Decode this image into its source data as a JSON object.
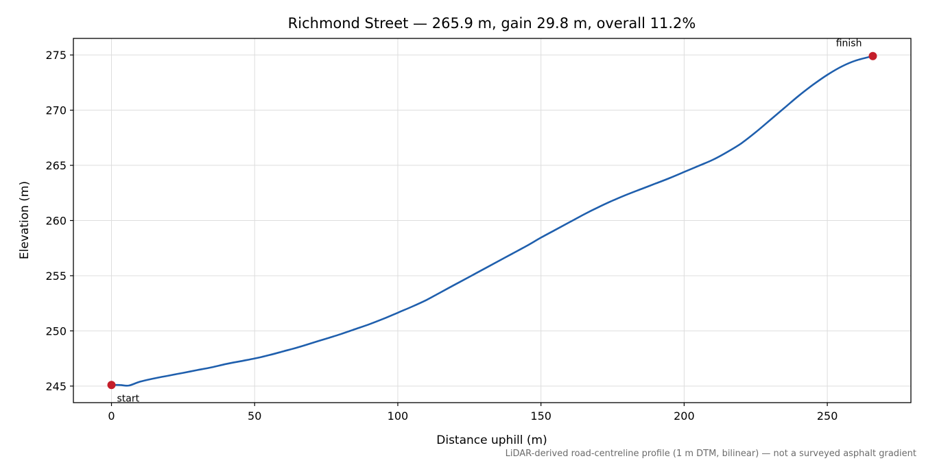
{
  "chart_data": {
    "type": "line",
    "title": "Richmond Street — 265.9 m, gain 29.8 m, overall 11.2%",
    "xlabel": "Distance uphill (m)",
    "ylabel": "Elevation (m)",
    "xlim": [
      -13.3,
      279.2
    ],
    "ylim": [
      243.5,
      276.5
    ],
    "x_ticks": [
      0,
      50,
      100,
      150,
      200,
      250
    ],
    "y_ticks": [
      245,
      250,
      255,
      260,
      265,
      270,
      275
    ],
    "x_tick_labels": [
      "0",
      "50",
      "100",
      "150",
      "200",
      "250"
    ],
    "y_tick_labels": [
      "245",
      "250",
      "255",
      "260",
      "265",
      "270",
      "275"
    ],
    "grid": true,
    "series": [
      {
        "color": "#1f5fad",
        "x": [
          0,
          3,
          6,
          10,
          15,
          20,
          25,
          30,
          35,
          40,
          45,
          50,
          55,
          60,
          65,
          70,
          75,
          80,
          85,
          90,
          95,
          100,
          105,
          110,
          115,
          120,
          125,
          130,
          135,
          140,
          145,
          150,
          155,
          160,
          165,
          170,
          175,
          180,
          185,
          190,
          195,
          200,
          205,
          210,
          215,
          220,
          225,
          230,
          235,
          240,
          245,
          250,
          255,
          260,
          265.9
        ],
        "y": [
          245.1,
          245.1,
          245.05,
          245.4,
          245.7,
          245.95,
          246.2,
          246.45,
          246.7,
          247.0,
          247.25,
          247.5,
          247.8,
          248.15,
          248.5,
          248.9,
          249.3,
          249.7,
          250.15,
          250.6,
          251.1,
          251.65,
          252.2,
          252.8,
          253.5,
          254.2,
          254.9,
          255.6,
          256.3,
          257.0,
          257.7,
          258.45,
          259.15,
          259.85,
          260.55,
          261.2,
          261.8,
          262.35,
          262.85,
          263.35,
          263.85,
          264.4,
          264.95,
          265.5,
          266.2,
          267.0,
          268.0,
          269.1,
          270.2,
          271.3,
          272.3,
          273.2,
          273.95,
          274.5,
          274.9
        ]
      }
    ],
    "markers": [
      {
        "label": "start",
        "x": 0,
        "y": 245.1,
        "color": "#c41e2a"
      },
      {
        "label": "finish",
        "x": 265.9,
        "y": 274.9,
        "color": "#c41e2a"
      }
    ],
    "footnote": "LiDAR-derived road-centreline profile (1 m DTM, bilinear) — not a surveyed asphalt gradient"
  }
}
